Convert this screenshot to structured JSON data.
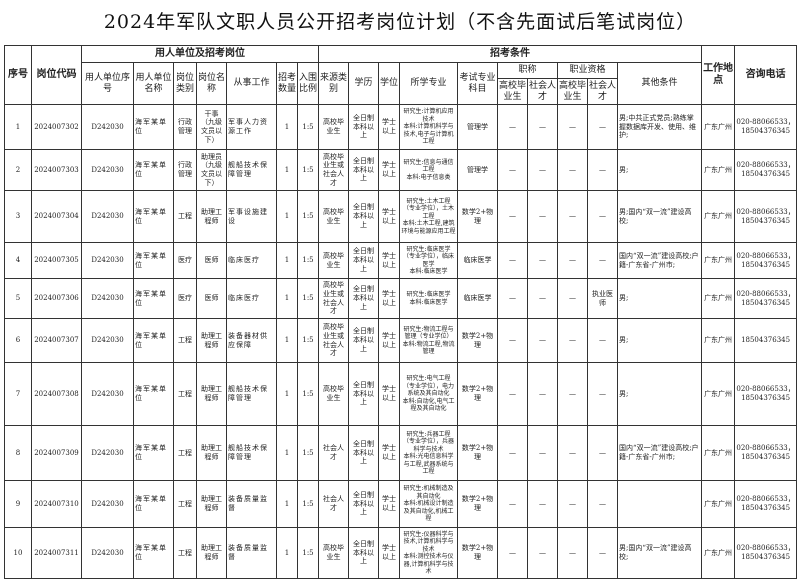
{
  "title": "2024年军队文职人员公开招考岗位计划（不含先面试后笔试岗位）",
  "headers": {
    "seq": "序号",
    "code": "岗位代码",
    "group_unit": "用人单位及招考岗位",
    "unit_seq": "用人单位序号",
    "unit_name": "用人单位名称",
    "post_type": "岗位类别",
    "post_name": "岗位名称",
    "work": "从事工作",
    "count": "招考数量",
    "ratio": "入围比例",
    "group_cond": "招考条件",
    "source": "来源类别",
    "education": "学历",
    "degree": "学位",
    "major": "所学专业",
    "exam": "考试专业科目",
    "title": "职称",
    "qual": "职业资格",
    "grad": "高校毕业生",
    "social": "社会人才",
    "other": "其他条件",
    "location": "工作地点",
    "phone": "咨询电话"
  },
  "rows": [
    {
      "seq": "1",
      "code": "2024007302",
      "unit_seq": "D242030",
      "unit_name": "海军某单位",
      "post_type": "行政管理",
      "post_name": "干事（九级文员以下）",
      "work": "军事人力资源工作",
      "count": "1",
      "ratio": "1:5",
      "source": "高校毕业生",
      "education": "全日制本科以上",
      "degree": "学士以上",
      "major": "研究生:计算机应用技术\n本科:计算机科学与技术,电子与计算机工程",
      "exam": "管理学",
      "title_grad": "—",
      "title_social": "—",
      "qual_grad": "—",
      "qual_social": "—",
      "other": "男;中共正式党员;熟练掌握数据库开发、使用、维护;",
      "location": "广东广州",
      "phone": "020-88066533，18504376345"
    },
    {
      "seq": "2",
      "code": "2024007303",
      "unit_seq": "D242030",
      "unit_name": "海军某单位",
      "post_type": "行政管理",
      "post_name": "助理员（九级文员以下）",
      "work": "舰船技术保障管理",
      "count": "1",
      "ratio": "1:5",
      "source": "高校毕业生或社会人才",
      "education": "全日制本科以上",
      "degree": "学士以上",
      "major": "研究生:信息与通信工程\n本科:电子信息类",
      "exam": "管理学",
      "title_grad": "—",
      "title_social": "—",
      "qual_grad": "—",
      "qual_social": "—",
      "other": "男;",
      "location": "广东广州",
      "phone": "020-88066533，18504376345"
    },
    {
      "seq": "3",
      "code": "2024007304",
      "unit_seq": "D242030",
      "unit_name": "海军某单位",
      "post_type": "工程",
      "post_name": "助理工程师",
      "work": "军事设施建设",
      "count": "1",
      "ratio": "1:5",
      "source": "高校毕业生",
      "education": "全日制本科以上",
      "degree": "学士以上",
      "major": "研究生:土木工程（专业学位），土木工程\n本科:土木工程,建筑环境与能源应用工程",
      "exam": "数学2+物理",
      "title_grad": "—",
      "title_social": "—",
      "qual_grad": "—",
      "qual_social": "—",
      "other": "男;国内“双一流”建设高校;",
      "location": "广东广州",
      "phone": "020-88066533，18504376345"
    },
    {
      "seq": "4",
      "code": "2024007305",
      "unit_seq": "D242030",
      "unit_name": "海军某单位",
      "post_type": "医疗",
      "post_name": "医师",
      "work": "临床医疗",
      "count": "1",
      "ratio": "1:5",
      "source": "高校毕业生",
      "education": "全日制本科以上",
      "degree": "学士以上",
      "major": "研究生:临床医学（专业学位），临床医学\n本科:临床医学",
      "exam": "临床医学",
      "title_grad": "—",
      "title_social": "—",
      "qual_grad": "—",
      "qual_social": "—",
      "other": "国内“双一流”建设高校;户籍-广东省-广州市;",
      "location": "广东广州",
      "phone": "020-88066533，18504376345"
    },
    {
      "seq": "5",
      "code": "2024007306",
      "unit_seq": "D242030",
      "unit_name": "海军某单位",
      "post_type": "医疗",
      "post_name": "医师",
      "work": "临床医疗",
      "count": "1",
      "ratio": "1:5",
      "source": "高校毕业生或社会人才",
      "education": "全日制本科以上",
      "degree": "学士以上",
      "major": "研究生:临床医学\n本科:临床医学",
      "exam": "临床医学",
      "title_grad": "—",
      "title_social": "—",
      "qual_grad": "—",
      "qual_social": "执业医师",
      "other": "男;",
      "location": "广东广州",
      "phone": "020-88066533，18504376345"
    },
    {
      "seq": "6",
      "code": "2024007307",
      "unit_seq": "D242030",
      "unit_name": "海军某单位",
      "post_type": "工程",
      "post_name": "助理工程师",
      "work": "装备器材供应保障",
      "count": "1",
      "ratio": "1:5",
      "source": "高校毕业生或社会人才",
      "education": "全日制本科以上",
      "degree": "学士以上",
      "major": "研究生:物流工程与管理（专业学位）\n本科:物流工程,物流管理",
      "exam": "数学2+物理",
      "title_grad": "—",
      "title_social": "—",
      "qual_grad": "—",
      "qual_social": "—",
      "other": "男;",
      "location": "广东广州",
      "phone": "18504376345"
    },
    {
      "seq": "7",
      "code": "2024007308",
      "unit_seq": "D242030",
      "unit_name": "海军某单位",
      "post_type": "工程",
      "post_name": "助理工程师",
      "work": "舰船技术保障管理",
      "count": "1",
      "ratio": "1:5",
      "source": "高校毕业生",
      "education": "全日制本科以上",
      "degree": "学士以上",
      "major": "研究生:电气工程（专业学位），电力系统及其自动化\n本科:自动化,电气工程及其自动化",
      "exam": "数学2+物理",
      "title_grad": "—",
      "title_social": "—",
      "qual_grad": "—",
      "qual_social": "—",
      "other": "男;",
      "location": "广东广州",
      "phone": "020-88066533，18504376345"
    },
    {
      "seq": "8",
      "code": "2024007309",
      "unit_seq": "D242030",
      "unit_name": "海军某单位",
      "post_type": "工程",
      "post_name": "助理工程师",
      "work": "舰船技术保障管理",
      "count": "1",
      "ratio": "1:5",
      "source": "社会人才",
      "education": "全日制本科以上",
      "degree": "学士以上",
      "major": "研究生:兵器工程（专业学位），兵器科学与技术\n本科:光电信息科学与工程,武器系统与工程",
      "exam": "数学2+物理",
      "title_grad": "—",
      "title_social": "—",
      "qual_grad": "—",
      "qual_social": "—",
      "other": "国内“双一流”建设高校;户籍-广东省-广州市;",
      "location": "广东广州",
      "phone": "020-88066533，18504376345"
    },
    {
      "seq": "9",
      "code": "2024007310",
      "unit_seq": "D242030",
      "unit_name": "海军某单位",
      "post_type": "工程",
      "post_name": "助理工程师",
      "work": "装备质量监督",
      "count": "1",
      "ratio": "1:5",
      "source": "社会人才",
      "education": "全日制本科以上",
      "degree": "学士以上",
      "major": "研究生:机械制造及其自动化\n本科:机械设计制造及其自动化,机械工程",
      "exam": "数学2+物理",
      "title_grad": "—",
      "title_social": "—",
      "qual_grad": "—",
      "qual_social": "—",
      "other": "",
      "location": "广东广州",
      "phone": "020-88066533，18504376345"
    },
    {
      "seq": "10",
      "code": "2024007311",
      "unit_seq": "D242030",
      "unit_name": "海军某单位",
      "post_type": "工程",
      "post_name": "助理工程师",
      "work": "装备质量监督",
      "count": "1",
      "ratio": "1:5",
      "source": "高校毕业生",
      "education": "全日制本科以上",
      "degree": "学士以上",
      "major": "研究生:仪器科学与技术,计算机科学与技术\n本科:测控技术与仪器,计算机科学与技术",
      "exam": "数学2+物理",
      "title_grad": "—",
      "title_social": "—",
      "qual_grad": "—",
      "qual_social": "—",
      "other": "男;国内“双一流”建设高校;",
      "location": "广东广州",
      "phone": "020-88066533，18504376345"
    }
  ]
}
